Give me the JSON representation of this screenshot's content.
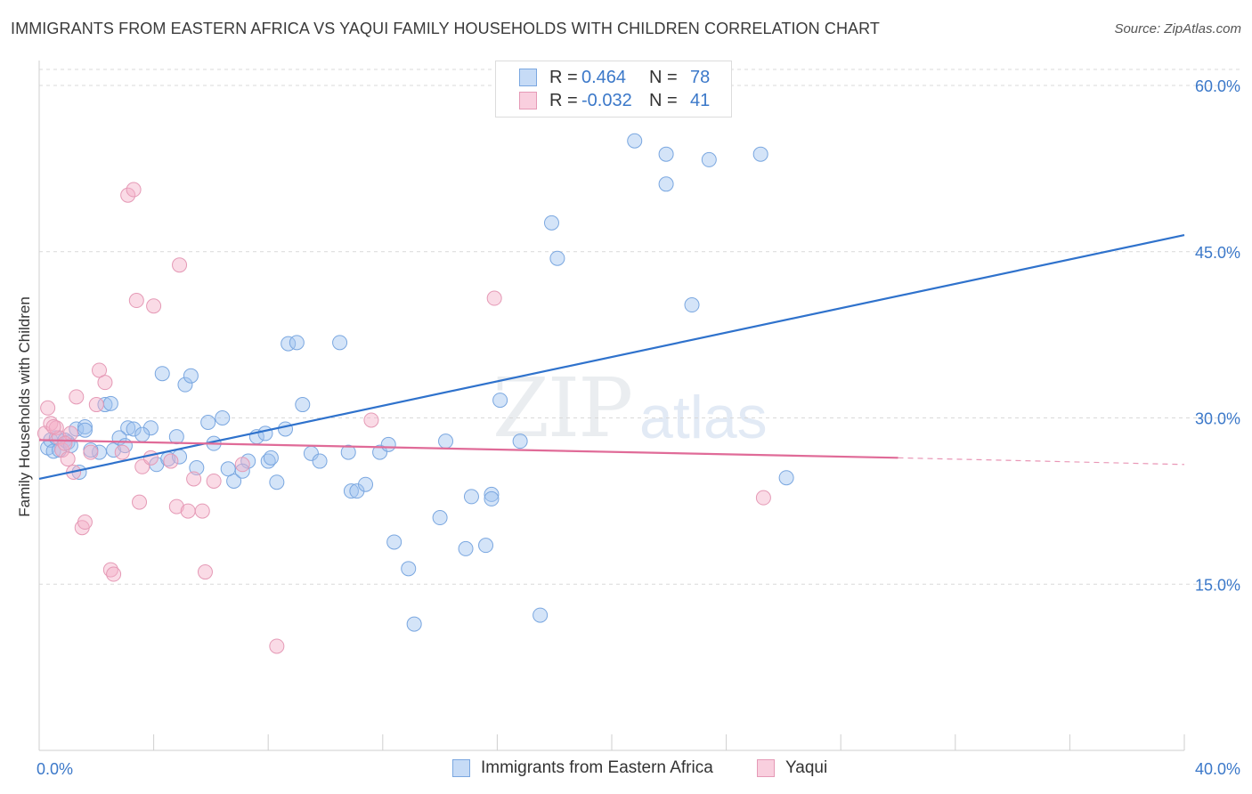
{
  "title": "IMMIGRANTS FROM EASTERN AFRICA VS YAQUI FAMILY HOUSEHOLDS WITH CHILDREN CORRELATION CHART",
  "source": "Source: ZipAtlas.com",
  "watermark": {
    "zip": "ZIP",
    "atlas": "atlas"
  },
  "colors": {
    "blue_fill": "rgba(160,195,240,0.45)",
    "blue_stroke": "#7aa7e0",
    "blue_line": "#2f72cc",
    "pink_fill": "rgba(245,175,200,0.45)",
    "pink_stroke": "#e59ab6",
    "pink_line": "#e06b98",
    "axis_text": "#3b78c9"
  },
  "legend_top": {
    "rows": [
      {
        "r_label": "R =",
        "r_value": "0.464",
        "n_label": "N =",
        "n_value": "78",
        "color": "blue"
      },
      {
        "r_label": "R =",
        "r_value": "-0.032",
        "n_label": "N =",
        "n_value": "41",
        "color": "pink"
      }
    ]
  },
  "legend_bottom": [
    {
      "label": "Immigrants from Eastern Africa",
      "color": "blue"
    },
    {
      "label": "Yaqui",
      "color": "pink"
    }
  ],
  "chart_data": {
    "type": "scatter",
    "title": "IMMIGRANTS FROM EASTERN AFRICA VS YAQUI FAMILY HOUSEHOLDS WITH CHILDREN CORRELATION CHART",
    "xlabel": "",
    "ylabel": "Family Households with Children",
    "xlim": [
      0,
      40
    ],
    "ylim": [
      0,
      62
    ],
    "x_tick_labels": [
      {
        "value": 0,
        "label": "0.0%"
      },
      {
        "value": 40,
        "label": "40.0%"
      }
    ],
    "y_tick_labels": [
      {
        "value": 15,
        "label": "15.0%"
      },
      {
        "value": 30,
        "label": "30.0%"
      },
      {
        "value": 45,
        "label": "45.0%"
      },
      {
        "value": 60,
        "label": "60.0%"
      }
    ],
    "grid": "horizontal-dashed",
    "series": [
      {
        "name": "Immigrants from Eastern Africa",
        "color": "blue",
        "trend": {
          "x": [
            0,
            40
          ],
          "y": [
            24.5,
            46.5
          ],
          "style": "solid"
        },
        "points": [
          [
            0.3,
            27.3
          ],
          [
            0.4,
            28.0
          ],
          [
            0.5,
            27.0
          ],
          [
            0.6,
            28.2
          ],
          [
            0.7,
            27.1
          ],
          [
            0.9,
            28.0
          ],
          [
            1.0,
            27.8
          ],
          [
            1.1,
            27.5
          ],
          [
            1.3,
            29.0
          ],
          [
            1.6,
            29.2
          ],
          [
            1.6,
            28.9
          ],
          [
            2.3,
            31.2
          ],
          [
            2.5,
            31.3
          ],
          [
            2.6,
            27.1
          ],
          [
            3.1,
            29.1
          ],
          [
            3.3,
            29.0
          ],
          [
            3.9,
            29.1
          ],
          [
            4.3,
            34.0
          ],
          [
            4.1,
            25.8
          ],
          [
            4.5,
            26.3
          ],
          [
            4.9,
            26.5
          ],
          [
            5.1,
            33.0
          ],
          [
            5.3,
            33.8
          ],
          [
            5.5,
            25.5
          ],
          [
            5.9,
            29.6
          ],
          [
            6.4,
            30.0
          ],
          [
            6.8,
            24.3
          ],
          [
            7.3,
            26.1
          ],
          [
            7.6,
            28.3
          ],
          [
            8.0,
            26.1
          ],
          [
            8.1,
            26.4
          ],
          [
            8.7,
            36.7
          ],
          [
            9.0,
            36.8
          ],
          [
            9.2,
            31.2
          ],
          [
            9.5,
            26.8
          ],
          [
            9.8,
            26.1
          ],
          [
            8.3,
            24.2
          ],
          [
            10.5,
            36.8
          ],
          [
            10.8,
            26.9
          ],
          [
            10.9,
            23.4
          ],
          [
            11.1,
            23.4
          ],
          [
            11.4,
            24.0
          ],
          [
            11.9,
            26.9
          ],
          [
            12.4,
            18.8
          ],
          [
            12.9,
            16.4
          ],
          [
            13.1,
            11.4
          ],
          [
            14.0,
            21.0
          ],
          [
            14.2,
            27.9
          ],
          [
            15.1,
            22.9
          ],
          [
            14.9,
            18.2
          ],
          [
            15.6,
            18.5
          ],
          [
            15.8,
            23.1
          ],
          [
            15.8,
            22.7
          ],
          [
            16.1,
            31.6
          ],
          [
            16.8,
            27.9
          ],
          [
            17.5,
            12.2
          ],
          [
            17.9,
            47.6
          ],
          [
            18.1,
            44.4
          ],
          [
            20.8,
            55.0
          ],
          [
            21.9,
            53.8
          ],
          [
            21.9,
            51.1
          ],
          [
            22.8,
            40.2
          ],
          [
            23.4,
            53.3
          ],
          [
            25.2,
            53.8
          ],
          [
            26.1,
            24.6
          ],
          [
            2.1,
            26.9
          ],
          [
            2.8,
            28.2
          ],
          [
            3.6,
            28.5
          ],
          [
            4.8,
            28.3
          ],
          [
            6.1,
            27.7
          ],
          [
            6.6,
            25.4
          ],
          [
            7.1,
            25.2
          ],
          [
            7.9,
            28.6
          ],
          [
            8.6,
            29.0
          ],
          [
            1.8,
            27.1
          ],
          [
            1.4,
            25.1
          ],
          [
            3.0,
            27.5
          ],
          [
            12.2,
            27.6
          ]
        ]
      },
      {
        "name": "Yaqui",
        "color": "pink",
        "trend": {
          "x": [
            0,
            30
          ],
          "y": [
            28.0,
            26.4
          ],
          "style": "solid",
          "dashed_to": [
            40,
            25.8
          ]
        },
        "points": [
          [
            0.2,
            28.6
          ],
          [
            0.3,
            30.9
          ],
          [
            0.4,
            29.5
          ],
          [
            0.6,
            29.1
          ],
          [
            0.7,
            28.2
          ],
          [
            0.8,
            27.1
          ],
          [
            1.0,
            26.3
          ],
          [
            1.1,
            28.6
          ],
          [
            1.2,
            25.1
          ],
          [
            1.3,
            31.9
          ],
          [
            1.5,
            20.1
          ],
          [
            1.6,
            20.6
          ],
          [
            1.8,
            26.9
          ],
          [
            2.0,
            31.2
          ],
          [
            2.1,
            34.3
          ],
          [
            2.3,
            33.2
          ],
          [
            2.5,
            16.3
          ],
          [
            2.6,
            15.9
          ],
          [
            2.9,
            26.9
          ],
          [
            3.1,
            50.1
          ],
          [
            3.3,
            50.6
          ],
          [
            3.4,
            40.6
          ],
          [
            3.5,
            22.4
          ],
          [
            3.6,
            25.6
          ],
          [
            3.9,
            26.4
          ],
          [
            4.0,
            40.1
          ],
          [
            4.6,
            26.1
          ],
          [
            4.8,
            22.0
          ],
          [
            4.9,
            43.8
          ],
          [
            5.2,
            21.6
          ],
          [
            5.4,
            24.5
          ],
          [
            5.7,
            21.6
          ],
          [
            5.8,
            16.1
          ],
          [
            6.1,
            24.3
          ],
          [
            7.1,
            25.8
          ],
          [
            8.3,
            9.4
          ],
          [
            11.6,
            29.8
          ],
          [
            15.9,
            40.8
          ],
          [
            25.3,
            22.8
          ],
          [
            0.9,
            27.7
          ],
          [
            0.5,
            29.2
          ]
        ]
      }
    ]
  }
}
